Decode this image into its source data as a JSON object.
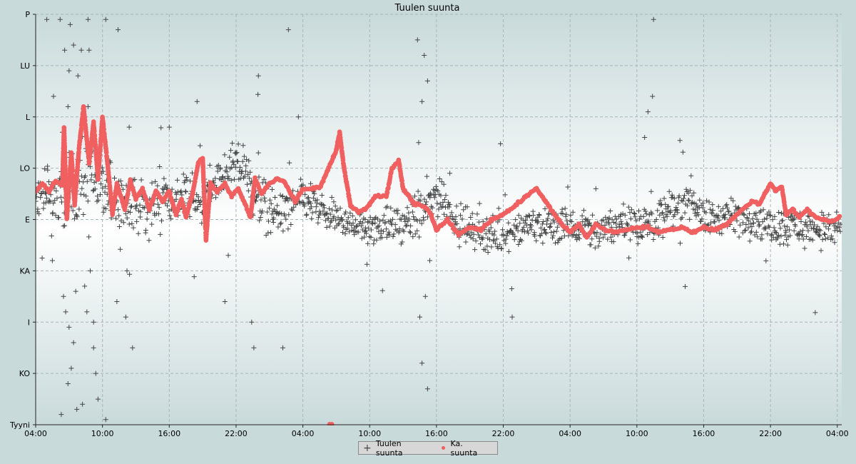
{
  "chart_data": {
    "type": "scatter",
    "title": "Tuulen suunta",
    "xlabel": "",
    "ylabel": "",
    "y_tick_labels": [
      "Tyyni",
      "KO",
      "I",
      "KA",
      "E",
      "LO",
      "L",
      "LU",
      "P"
    ],
    "y_range": [
      0,
      8
    ],
    "x_tick_labels": [
      "04:00",
      "10:00",
      "16:00",
      "22:00",
      "04:00",
      "10:00",
      "16:00",
      "22:00",
      "04:00",
      "10:00",
      "16:00",
      "22:00",
      "04:00"
    ],
    "x_range_hours": [
      0,
      72.4
    ],
    "grid": true,
    "legend_position": "bottom-center",
    "series": [
      {
        "name": "Tuulen suunta",
        "marker": "plus",
        "color": "#444444",
        "trend": [
          [
            0,
            4.3
          ],
          [
            2,
            4.45
          ],
          [
            4,
            4.7
          ],
          [
            5,
            4.9
          ],
          [
            6,
            4.55
          ],
          [
            8,
            4.3
          ],
          [
            10,
            4.25
          ],
          [
            11.5,
            4.45
          ],
          [
            13,
            4.4
          ],
          [
            14,
            4.35
          ],
          [
            15,
            4.4
          ],
          [
            16,
            4.65
          ],
          [
            17,
            4.95
          ],
          [
            18.5,
            5.05
          ],
          [
            19.5,
            4.55
          ],
          [
            20.5,
            4.3
          ],
          [
            22,
            4.1
          ],
          [
            24,
            4.4
          ],
          [
            26,
            4.1
          ],
          [
            28,
            3.95
          ],
          [
            30,
            3.85
          ],
          [
            33,
            3.9
          ],
          [
            34.5,
            4.1
          ],
          [
            35.5,
            4.3
          ],
          [
            36,
            4.55
          ],
          [
            37,
            4.3
          ],
          [
            38,
            3.9
          ],
          [
            39.5,
            3.8
          ],
          [
            41,
            3.7
          ],
          [
            43,
            3.85
          ],
          [
            46,
            3.9
          ],
          [
            49,
            3.85
          ],
          [
            52,
            3.85
          ],
          [
            55,
            3.95
          ],
          [
            57,
            4.15
          ],
          [
            58,
            4.35
          ],
          [
            59,
            4.45
          ],
          [
            60,
            4.0
          ],
          [
            62,
            4.05
          ],
          [
            64,
            4.05
          ],
          [
            66,
            3.9
          ],
          [
            69,
            3.85
          ],
          [
            72,
            3.8
          ]
        ],
        "spread": [
          [
            0,
            0.6
          ],
          [
            8,
            0.7
          ],
          [
            12,
            0.5
          ],
          [
            17,
            0.4
          ],
          [
            20,
            0.5
          ],
          [
            23,
            0.4
          ],
          [
            28,
            0.3
          ],
          [
            31,
            0.35
          ],
          [
            35,
            0.5
          ],
          [
            38,
            0.35
          ],
          [
            45,
            0.35
          ],
          [
            57,
            0.4
          ],
          [
            60,
            0.35
          ],
          [
            72,
            0.35
          ]
        ],
        "outliers": [
          [
            1.0,
            7.9
          ],
          [
            2.2,
            7.9
          ],
          [
            3.1,
            7.8
          ],
          [
            4.7,
            7.9
          ],
          [
            6.3,
            7.9
          ],
          [
            7.4,
            7.7
          ],
          [
            2.6,
            7.3
          ],
          [
            3.4,
            7.4
          ],
          [
            4.1,
            7.3
          ],
          [
            4.8,
            7.3
          ],
          [
            3.0,
            6.9
          ],
          [
            3.8,
            6.8
          ],
          [
            1.6,
            6.4
          ],
          [
            2.9,
            6.2
          ],
          [
            4.4,
            6.0
          ],
          [
            2.4,
            5.7
          ],
          [
            4.7,
            6.2
          ],
          [
            2.5,
            2.5
          ],
          [
            2.7,
            2.2
          ],
          [
            3.0,
            1.9
          ],
          [
            3.4,
            1.6
          ],
          [
            3.2,
            1.1
          ],
          [
            2.9,
            0.8
          ],
          [
            3.7,
            0.3
          ],
          [
            4.2,
            0.4
          ],
          [
            4.4,
            2.7
          ],
          [
            4.6,
            2.2
          ],
          [
            5.2,
            2.0
          ],
          [
            5.4,
            1.0
          ],
          [
            5.6,
            0.5
          ],
          [
            1.5,
            3.2
          ],
          [
            3.6,
            2.6
          ],
          [
            4.9,
            3.0
          ],
          [
            5.2,
            1.5
          ],
          [
            7.3,
            2.4
          ],
          [
            8.1,
            2.1
          ],
          [
            8.7,
            1.5
          ],
          [
            8.2,
            3.0
          ],
          [
            6.3,
            0.1
          ],
          [
            2.3,
            0.2
          ],
          [
            17.0,
            2.4
          ],
          [
            17.3,
            3.3
          ],
          [
            19.4,
            2.0
          ],
          [
            19.6,
            1.5
          ],
          [
            20.0,
            5.3
          ],
          [
            21.3,
            4.0
          ],
          [
            22.2,
            1.5
          ],
          [
            23.6,
            6.0
          ],
          [
            22.7,
            7.7
          ],
          [
            20.0,
            6.8
          ],
          [
            24.7,
            4.7
          ],
          [
            29.6,
            4.0
          ],
          [
            34.3,
            7.5
          ],
          [
            34.9,
            7.2
          ],
          [
            35.2,
            6.7
          ],
          [
            34.7,
            6.3
          ],
          [
            34.4,
            5.5
          ],
          [
            35.0,
            2.5
          ],
          [
            34.5,
            2.1
          ],
          [
            34.7,
            1.2
          ],
          [
            35.2,
            0.7
          ],
          [
            35.4,
            3.2
          ],
          [
            42.8,
            2.1
          ],
          [
            37.2,
            4.9
          ],
          [
            55.5,
            7.9
          ],
          [
            55.4,
            6.4
          ],
          [
            55.0,
            6.1
          ],
          [
            54.7,
            5.6
          ],
          [
            12.0,
            5.8
          ],
          [
            8.4,
            5.8
          ],
          [
            14.5,
            6.3
          ]
        ]
      },
      {
        "name": "Ka. suunta",
        "marker": "dot",
        "color": "#f06060",
        "segments": [
          [
            [
              0,
              4.55
            ],
            [
              0.6,
              4.7
            ],
            [
              1.2,
              4.55
            ],
            [
              1.8,
              4.75
            ],
            [
              2.4,
              4.65
            ]
          ],
          [
            [
              2.4,
              4.65
            ],
            [
              2.55,
              5.8
            ],
            [
              2.8,
              4.0
            ],
            [
              3.2,
              5.3
            ],
            [
              3.5,
              4.3
            ],
            [
              3.9,
              5.4
            ],
            [
              4.3,
              6.2
            ],
            [
              4.8,
              5.1
            ],
            [
              5.2,
              5.9
            ],
            [
              5.6,
              4.8
            ],
            [
              6.0,
              6.0
            ],
            [
              6.5,
              5.0
            ],
            [
              6.9,
              4.1
            ],
            [
              7.3,
              4.7
            ]
          ],
          [
            [
              7.3,
              4.7
            ],
            [
              8.0,
              4.2
            ],
            [
              8.5,
              4.75
            ],
            [
              9.0,
              4.4
            ],
            [
              9.6,
              4.6
            ],
            [
              10.2,
              4.2
            ],
            [
              10.8,
              4.55
            ],
            [
              11.4,
              4.35
            ],
            [
              12.0,
              4.55
            ],
            [
              12.6,
              4.1
            ],
            [
              13.1,
              4.4
            ],
            [
              13.5,
              4.05
            ],
            [
              14.1,
              4.5
            ],
            [
              14.6,
              5.1
            ]
          ],
          [
            [
              14.6,
              5.1
            ],
            [
              15.0,
              5.2
            ],
            [
              15.3,
              3.6
            ],
            [
              15.7,
              4.7
            ],
            [
              16.3,
              4.55
            ],
            [
              17.0,
              4.7
            ],
            [
              17.6,
              4.45
            ],
            [
              18.2,
              4.6
            ],
            [
              18.8,
              4.3
            ],
            [
              19.3,
              4.05
            ],
            [
              19.7,
              4.8
            ]
          ],
          [
            [
              19.7,
              4.8
            ],
            [
              20.3,
              4.5
            ],
            [
              21.0,
              4.7
            ],
            [
              21.7,
              4.8
            ],
            [
              22.3,
              4.75
            ],
            [
              22.8,
              4.55
            ],
            [
              23.3,
              4.35
            ],
            [
              24.0,
              4.6
            ],
            [
              24.8,
              4.6
            ],
            [
              25.6,
              4.65
            ]
          ],
          [
            [
              25.6,
              4.65
            ],
            [
              26.2,
              4.95
            ],
            [
              27.0,
              5.35
            ],
            [
              27.3,
              5.7
            ],
            [
              27.7,
              5.0
            ],
            [
              28.3,
              4.25
            ],
            [
              29.0,
              4.15
            ],
            [
              29.6,
              4.2
            ],
            [
              30.0,
              4.3
            ],
            [
              30.5,
              4.45
            ],
            [
              31.5,
              4.45
            ],
            [
              32.0,
              5.0
            ],
            [
              32.6,
              5.15
            ],
            [
              33.0,
              4.6
            ],
            [
              34.0,
              4.3
            ],
            [
              35.0,
              4.25
            ]
          ],
          [
            [
              35.0,
              4.25
            ],
            [
              35.5,
              4.1
            ],
            [
              36.0,
              3.8
            ],
            [
              37.0,
              4.0
            ],
            [
              38.0,
              3.7
            ],
            [
              39.0,
              3.85
            ],
            [
              40.0,
              3.8
            ],
            [
              41.0,
              4.0
            ],
            [
              42.0,
              4.1
            ],
            [
              43.0,
              4.25
            ],
            [
              44.0,
              4.45
            ],
            [
              45.0,
              4.6
            ],
            [
              45.8,
              4.35
            ],
            [
              46.6,
              4.1
            ],
            [
              47.3,
              3.9
            ]
          ],
          [
            [
              47.3,
              3.9
            ],
            [
              48.0,
              3.75
            ],
            [
              48.8,
              3.9
            ],
            [
              49.5,
              3.65
            ],
            [
              50.3,
              3.9
            ],
            [
              51.2,
              3.8
            ],
            [
              52.0,
              3.75
            ],
            [
              53.0,
              3.8
            ],
            [
              54.0,
              3.85
            ],
            [
              55.0,
              3.85
            ],
            [
              56.0,
              3.75
            ],
            [
              57.0,
              3.8
            ],
            [
              58.0,
              3.85
            ],
            [
              59.0,
              3.75
            ],
            [
              60.0,
              3.85
            ],
            [
              61.0,
              3.8
            ],
            [
              62.0,
              3.9
            ]
          ],
          [
            [
              62.0,
              3.9
            ],
            [
              62.8,
              4.05
            ],
            [
              63.5,
              4.2
            ],
            [
              64.3,
              4.35
            ],
            [
              65.0,
              4.3
            ],
            [
              65.6,
              4.55
            ],
            [
              66.0,
              4.7
            ],
            [
              66.5,
              4.55
            ],
            [
              67.0,
              4.65
            ],
            [
              67.4,
              4.1
            ],
            [
              68.0,
              4.2
            ],
            [
              68.6,
              4.05
            ],
            [
              69.3,
              4.2
            ]
          ],
          [
            [
              69.3,
              4.2
            ],
            [
              70.0,
              4.05
            ],
            [
              70.8,
              4.0
            ],
            [
              71.5,
              3.95
            ],
            [
              72.2,
              4.05
            ]
          ]
        ],
        "extra_points": [
          [
            26.4,
            0.0
          ],
          [
            26.6,
            0.0
          ]
        ]
      }
    ]
  },
  "legend": {
    "items": [
      {
        "label": "Tuulen suunta",
        "marker": "plus"
      },
      {
        "label": "Ka. suunta",
        "marker": "dot"
      }
    ]
  },
  "colors": {
    "plot_background_mid": "#ffffff",
    "plot_background_edge": "#c9dadb",
    "grid": "#a8b4b8",
    "plus_marker": "#444444",
    "average_dot": "#f06060"
  }
}
